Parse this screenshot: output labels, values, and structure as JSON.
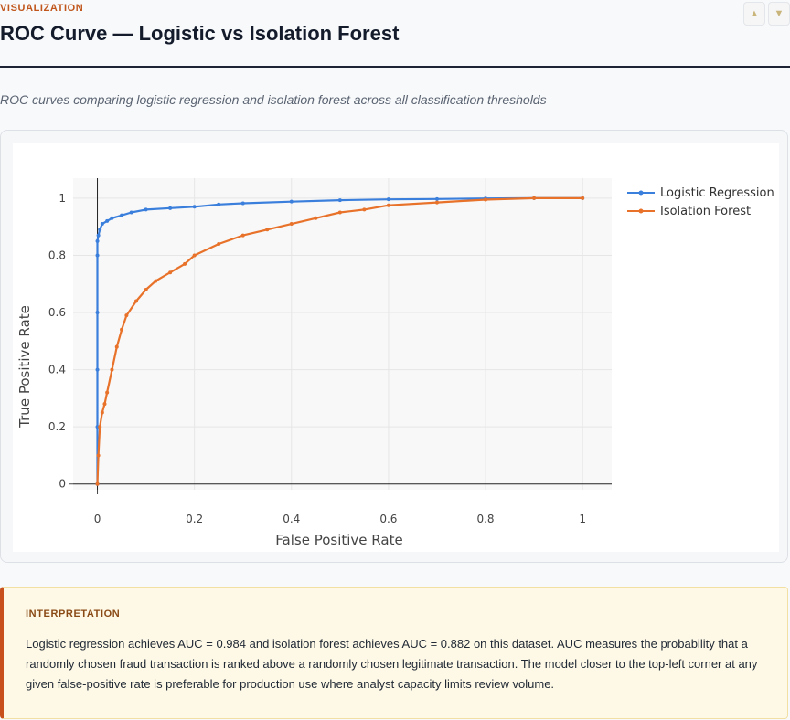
{
  "header": {
    "eyebrow": "VISUALIZATION",
    "title": "ROC Curve — Logistic vs Isolation Forest",
    "subtitle": "ROC curves comparing logistic regression and isolation forest across all classification thresholds"
  },
  "feedback": {
    "up_icon": "thumbs-up-icon",
    "down_icon": "thumbs-down-icon"
  },
  "interpretation": {
    "label": "INTERPRETATION",
    "text": "Logistic regression achieves AUC = 0.984 and isolation forest achieves AUC = 0.882 on this dataset. AUC measures the probability that a randomly chosen fraud transaction is ranked above a randomly chosen legitimate transaction. The model closer to the top-left corner at any given false-positive rate is preferable for production use where analyst capacity limits review volume."
  },
  "colors": {
    "logistic": "#3b7fdc",
    "isolation": "#e8722a",
    "accent": "#c0561b"
  },
  "chart_data": {
    "type": "line",
    "title": "",
    "xlabel": "False Positive Rate",
    "ylabel": "True Positive Rate",
    "xlim": [
      -0.05,
      1.06
    ],
    "ylim": [
      -0.02,
      1.07
    ],
    "xticks": [
      0,
      0.2,
      0.4,
      0.6,
      0.8,
      1
    ],
    "xtick_labels": [
      "0",
      "0.2",
      "0.4",
      "0.6",
      "0.8",
      "1"
    ],
    "yticks": [
      0,
      0.2,
      0.4,
      0.6,
      0.8,
      1
    ],
    "ytick_labels": [
      "0",
      "0.2",
      "0.4",
      "0.6",
      "0.8",
      "1"
    ],
    "grid": true,
    "legend": "top-right",
    "series": [
      {
        "name": "Logistic Regression",
        "color": "#3b7fdc",
        "x": [
          0,
          0,
          0,
          0,
          0,
          0,
          0.002,
          0.005,
          0.01,
          0.02,
          0.03,
          0.05,
          0.07,
          0.1,
          0.15,
          0.2,
          0.25,
          0.3,
          0.4,
          0.5,
          0.6,
          0.7,
          0.8,
          0.9,
          1
        ],
        "y": [
          0,
          0.2,
          0.4,
          0.6,
          0.8,
          0.85,
          0.87,
          0.89,
          0.91,
          0.92,
          0.93,
          0.94,
          0.95,
          0.96,
          0.965,
          0.97,
          0.978,
          0.982,
          0.988,
          0.993,
          0.996,
          0.997,
          0.999,
          1,
          1
        ]
      },
      {
        "name": "Isolation Forest",
        "color": "#e8722a",
        "x": [
          0,
          0.002,
          0.005,
          0.01,
          0.015,
          0.02,
          0.03,
          0.04,
          0.05,
          0.06,
          0.08,
          0.1,
          0.12,
          0.15,
          0.18,
          0.2,
          0.25,
          0.3,
          0.35,
          0.4,
          0.45,
          0.5,
          0.55,
          0.6,
          0.7,
          0.8,
          0.9,
          1
        ],
        "y": [
          0,
          0.1,
          0.2,
          0.25,
          0.28,
          0.32,
          0.4,
          0.48,
          0.54,
          0.59,
          0.64,
          0.68,
          0.71,
          0.74,
          0.77,
          0.8,
          0.84,
          0.87,
          0.89,
          0.91,
          0.93,
          0.95,
          0.96,
          0.975,
          0.985,
          0.995,
          1,
          1
        ]
      }
    ]
  }
}
